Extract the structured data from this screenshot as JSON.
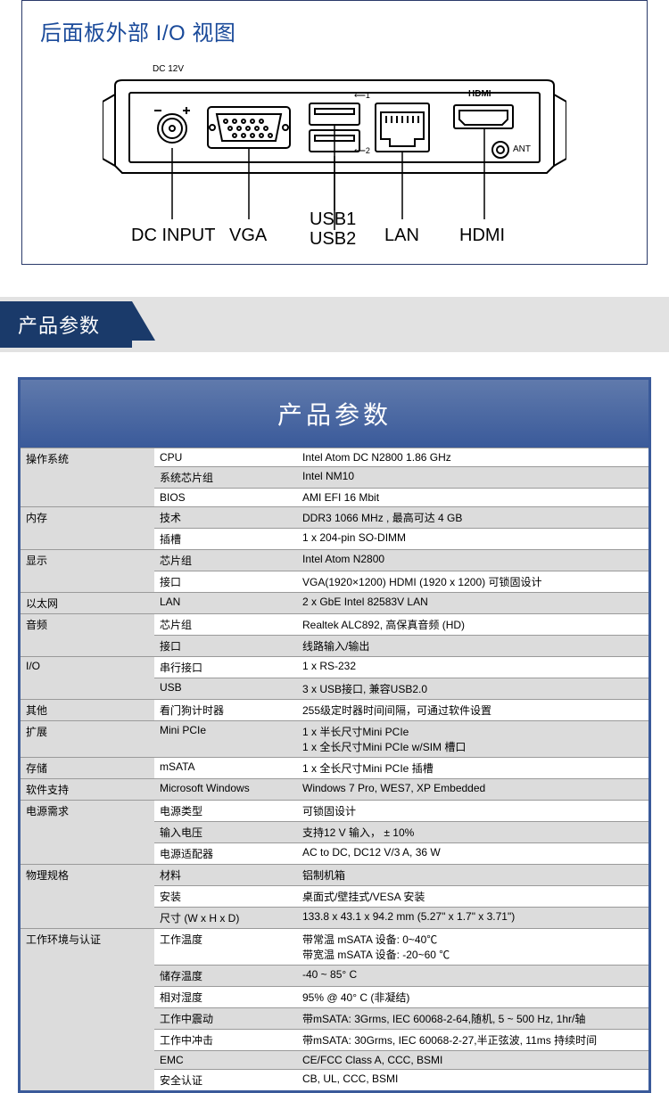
{
  "io": {
    "title": "后面板外部 I/O 视图",
    "top_labels": {
      "dc12v": "DC 12V",
      "usb1": "1",
      "usb2": "2",
      "hdmi": "HDMI",
      "ant": "ANT"
    },
    "minus": "-",
    "plus": "+",
    "callouts": {
      "dcinput": "DC INPUT",
      "vga": "VGA",
      "usb1": "USB1",
      "usb2": "USB2",
      "lan": "LAN",
      "hdmi": "HDMI"
    }
  },
  "ribbon": "产品参数",
  "spec_title": "产品参数",
  "rows": [
    {
      "cat": "操作系统",
      "catspan": 3,
      "sub": "CPU",
      "val": "Intel Atom DC N2800 1.86 GHz",
      "alt": 0
    },
    {
      "sub": "系统芯片组",
      "val": "Intel NM10",
      "alt": 1
    },
    {
      "sub": "BIOS",
      "val": "AMI EFI 16 Mbit",
      "alt": 0
    },
    {
      "cat": "内存",
      "catspan": 2,
      "sub": "技术",
      "val": "DDR3 1066 MHz , 最高可达 4 GB",
      "alt": 1
    },
    {
      "sub": "插槽",
      "val": "1 x 204-pin SO-DIMM",
      "alt": 0
    },
    {
      "cat": "显示",
      "catspan": 2,
      "sub": "芯片组",
      "val": "Intel Atom N2800",
      "alt": 1
    },
    {
      "sub": "接口",
      "val": "VGA(1920×1200)  HDMI (1920 x 1200) 可锁固设计",
      "alt": 0
    },
    {
      "cat": "以太网",
      "catspan": 1,
      "sub": "LAN",
      "val": "2 x GbE Intel 82583V LAN",
      "alt": 1
    },
    {
      "cat": "音频",
      "catspan": 2,
      "sub": "芯片组",
      "val": "Realtek ALC892, 高保真音频 (HD)",
      "alt": 0
    },
    {
      "sub": "接口",
      "val": "线路输入/输出",
      "alt": 1
    },
    {
      "cat": "I/O",
      "catspan": 2,
      "sub": "串行接口",
      "val": "1 x RS-232",
      "alt": 0
    },
    {
      "sub": "USB",
      "val": "3 x USB接口, 兼容USB2.0",
      "alt": 1
    },
    {
      "cat": "其他",
      "catspan": 1,
      "sub": "看门狗计时器",
      "val": "255级定时器时间间隔，可通过软件设置",
      "alt": 0
    },
    {
      "cat": "扩展",
      "catspan": 1,
      "sub": "Mini PCIe",
      "val": "1 x 半长尺寸Mini PCIe\n1 x 全长尺寸Mini PCIe w/SIM 槽口",
      "alt": 1
    },
    {
      "cat": "存储",
      "catspan": 1,
      "sub": "mSATA",
      "val": "1 x 全长尺寸Mini PCIe   插槽",
      "alt": 0
    },
    {
      "cat": "软件支持",
      "catspan": 1,
      "sub": "Microsoft Windows",
      "val": "Windows 7 Pro, WES7, XP Embedded",
      "alt": 1
    },
    {
      "cat": "电源需求",
      "catspan": 3,
      "sub": "电源类型",
      "val": "可锁固设计",
      "alt": 0
    },
    {
      "sub": "输入电压",
      "val": "支持12 V 输入， ± 10%",
      "alt": 1
    },
    {
      "sub": "电源适配器",
      "val": "AC to DC, DC12 V/3 A, 36 W",
      "alt": 0
    },
    {
      "cat": "物理规格",
      "catspan": 3,
      "sub": "材料",
      "val": "铝制机箱",
      "alt": 1
    },
    {
      "sub": "安装",
      "val": "桌面式/壁挂式/VESA 安装",
      "alt": 0
    },
    {
      "sub": "尺寸 (W x H x D)",
      "val": "133.8 x 43.1 x 94.2 mm (5.27\" x 1.7\" x 3.71\")",
      "alt": 1
    },
    {
      "cat": "工作环境与认证",
      "catspan": 7,
      "sub": "工作温度",
      "val": "带常温 mSATA 设备:    0~40℃\n带宽温 mSATA 设备: -20~60 ℃",
      "alt": 0
    },
    {
      "sub": "储存温度",
      "val": "-40 ~ 85° C",
      "alt": 1
    },
    {
      "sub": "相对湿度",
      "val": "95% @ 40° C (非凝结)",
      "alt": 0
    },
    {
      "sub": "工作中震动",
      "val": "带mSATA: 3Grms, IEC 60068-2-64,随机, 5 ~ 500 Hz, 1hr/轴",
      "alt": 1
    },
    {
      "sub": "工作中冲击",
      "val": "带mSATA: 30Grms, IEC 60068-2-27,半正弦波, 11ms 持续时间",
      "alt": 0
    },
    {
      "sub": "EMC",
      "val": "CE/FCC Class A, CCC, BSMI",
      "alt": 1
    },
    {
      "sub": "安全认证",
      "val": "CB, UL, CCC, BSMI",
      "alt": 0
    }
  ],
  "colors": {
    "accent": "#1a3a6a",
    "border": "#3a5a9a",
    "title_blue": "#1a4a9a",
    "alt_row": "#dcdcdc"
  }
}
